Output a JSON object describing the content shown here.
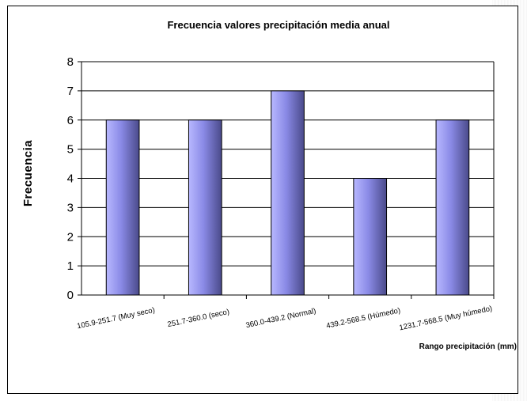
{
  "chart_data": {
    "type": "bar",
    "title": "Frecuencia valores precipitación  media anual",
    "xlabel": "Rango precipitación (mm)",
    "ylabel": "Frecuencia",
    "categories": [
      "105.9-251.7    (Muy seco)",
      "251.7-360.0  (seco)",
      "360.0-439.2  (Normal)",
      "439.2-568.5  (Húmedo)",
      "1231.7-568.5   (Muy húmedo)"
    ],
    "values": [
      6,
      6,
      7,
      4,
      6
    ],
    "ylim": [
      0,
      8
    ],
    "yticks": [
      "0",
      "1",
      "2",
      "3",
      "4",
      "5",
      "6",
      "7",
      "8"
    ],
    "grid": true,
    "legend": "none",
    "colors": {
      "bar_light": "#b8b8ff",
      "bar_mid": "#8a8ae6",
      "bar_dark": "#4a4a8a",
      "gridline": "#000000"
    }
  }
}
